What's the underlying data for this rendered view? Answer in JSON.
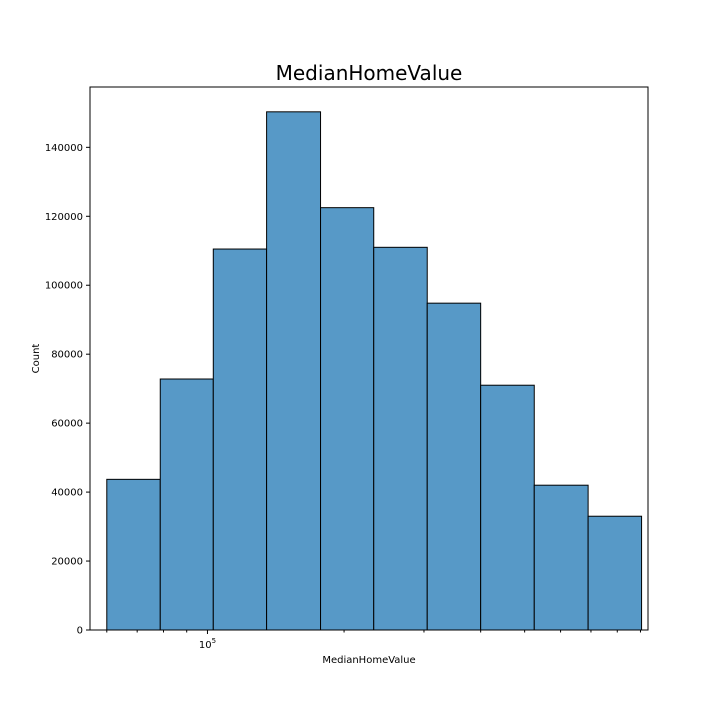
{
  "chart_data": {
    "type": "bar",
    "title": "MedianHomeValue",
    "xlabel": "MedianHomeValue",
    "ylabel": "Count",
    "x_scale": "log",
    "x_major_ticks": [
      {
        "value": 100000,
        "base": "10",
        "exponent": "5"
      }
    ],
    "x_minor_ticks": [
      60000,
      70000,
      80000,
      90000,
      200000,
      300000,
      400000,
      500000,
      600000,
      700000,
      800000,
      900000
    ],
    "xlim": [
      55100,
      935000
    ],
    "ylim": [
      0,
      157500
    ],
    "y_ticks": [
      {
        "value": 0,
        "label": "0"
      },
      {
        "value": 20000,
        "label": "20000"
      },
      {
        "value": 40000,
        "label": "40000"
      },
      {
        "value": 60000,
        "label": "60000"
      },
      {
        "value": 80000,
        "label": "80000"
      },
      {
        "value": 100000,
        "label": "100000"
      },
      {
        "value": 120000,
        "label": "120000"
      },
      {
        "value": 140000,
        "label": "140000"
      }
    ],
    "grid": false,
    "bar_color": "#5799c7",
    "bins": [
      {
        "x0": 60000,
        "x1": 78700,
        "count": 43700
      },
      {
        "x0": 78700,
        "x1": 103000,
        "count": 72800
      },
      {
        "x0": 103000,
        "x1": 135000,
        "count": 110500
      },
      {
        "x0": 135000,
        "x1": 177500,
        "count": 150300
      },
      {
        "x0": 177500,
        "x1": 232500,
        "count": 122500
      },
      {
        "x0": 232500,
        "x1": 305000,
        "count": 111000
      },
      {
        "x0": 305000,
        "x1": 400000,
        "count": 94800
      },
      {
        "x0": 400000,
        "x1": 525000,
        "count": 71000
      },
      {
        "x0": 525000,
        "x1": 690000,
        "count": 42000
      },
      {
        "x0": 690000,
        "x1": 905000,
        "count": 33000
      }
    ]
  }
}
